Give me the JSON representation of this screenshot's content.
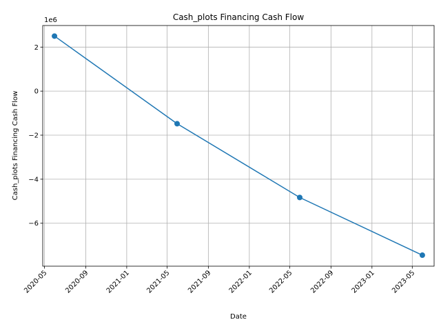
{
  "chart_data": {
    "type": "line",
    "title": "Cash_plots Financing Cash Flow",
    "xlabel": "Date",
    "ylabel": "Cash_plots Financing Cash Flow",
    "y_offset_label": "1e6",
    "x": [
      "2020-05-31",
      "2021-05-31",
      "2022-05-31",
      "2023-05-31"
    ],
    "series": [
      {
        "values": [
          2500000,
          -1480000,
          -4830000,
          -7450000
        ],
        "color": "#1f77b4",
        "marker": "o"
      }
    ],
    "x_ticks": [
      "2020-05",
      "2020-09",
      "2021-01",
      "2021-05",
      "2021-09",
      "2022-01",
      "2022-05",
      "2022-09",
      "2023-01",
      "2023-05"
    ],
    "y_ticks": [
      2,
      0,
      -2,
      -4,
      -6
    ],
    "y_tick_labels": [
      "2",
      "0",
      "−2",
      "−4",
      "−6"
    ],
    "xlim": [
      "2020-04-26",
      "2023-07-05"
    ],
    "ylim": [
      -7950000,
      2980000
    ],
    "grid": true
  }
}
